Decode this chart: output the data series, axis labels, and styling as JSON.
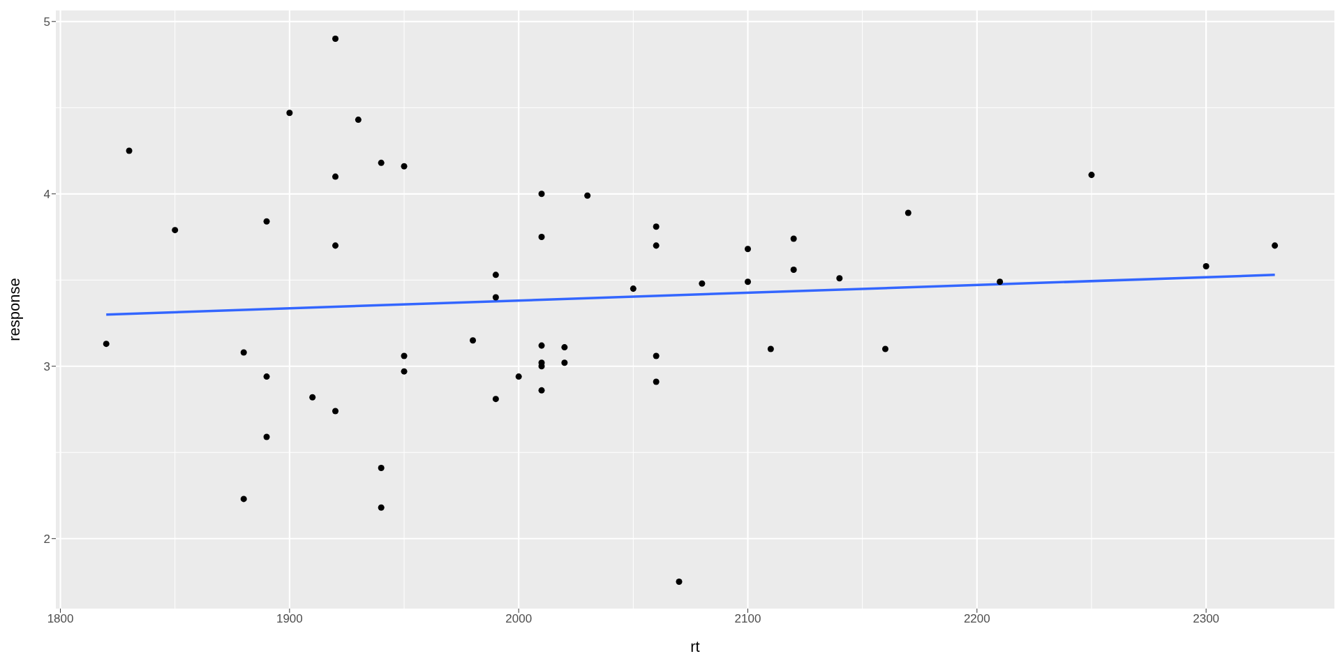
{
  "chart_data": {
    "type": "scatter",
    "xlabel": "rt",
    "ylabel": "response",
    "xlim": [
      1798,
      2356
    ],
    "ylim": [
      1.594,
      5.064
    ],
    "xticks": [
      1800,
      1900,
      2000,
      2100,
      2200,
      2300
    ],
    "yticks": [
      2,
      3,
      4,
      5
    ],
    "grid": true,
    "legend": false,
    "marker": "circle",
    "series": [
      {
        "color": "#000000",
        "x": [
          1820,
          1830,
          1850,
          1880,
          1880,
          1890,
          1890,
          1890,
          1900,
          1910,
          1920,
          1920,
          1920,
          1920,
          1930,
          1940,
          1940,
          1940,
          1950,
          1950,
          1950,
          1980,
          1990,
          1990,
          1990,
          2000,
          2010,
          2010,
          2010,
          2010,
          2010,
          2010,
          2020,
          2020,
          2030,
          2050,
          2060,
          2060,
          2060,
          2060,
          2070,
          2080,
          2100,
          2100,
          2110,
          2120,
          2120,
          2140,
          2160,
          2170,
          2210,
          2250,
          2300,
          2330
        ],
        "values": [
          3.13,
          4.25,
          3.79,
          3.08,
          2.23,
          3.84,
          2.94,
          2.59,
          4.47,
          2.82,
          4.9,
          4.1,
          3.7,
          2.74,
          4.43,
          4.18,
          2.41,
          2.18,
          4.16,
          3.06,
          2.97,
          3.15,
          3.53,
          3.4,
          2.81,
          2.94,
          4.0,
          3.75,
          3.12,
          3.02,
          3.0,
          2.86,
          3.11,
          3.02,
          3.99,
          3.45,
          3.81,
          3.7,
          3.06,
          2.91,
          1.75,
          3.48,
          3.68,
          3.49,
          3.1,
          3.74,
          3.56,
          3.51,
          3.1,
          3.89,
          3.49,
          4.11,
          3.58,
          3.7
        ]
      },
      {
        "type": "line",
        "color": "#3366ff",
        "x": [
          1820,
          2330
        ],
        "values": [
          3.3,
          3.53
        ],
        "line_style": "solid",
        "marker": "none"
      }
    ]
  }
}
